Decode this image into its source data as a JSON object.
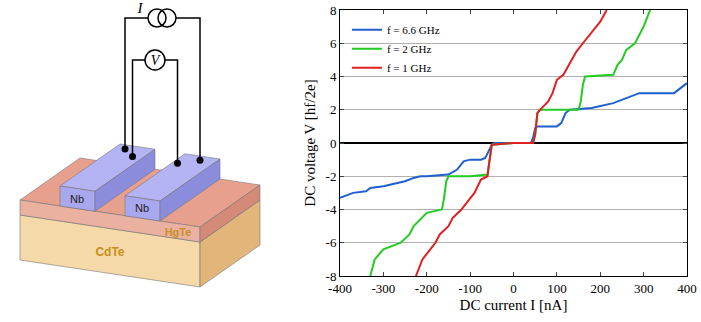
{
  "diagram": {
    "source_label": "I",
    "meter_label": "V",
    "electrodes": [
      "Nb",
      "Nb"
    ],
    "layers": [
      "HgTe",
      "CdTe"
    ]
  },
  "chart_data": {
    "type": "line",
    "xlabel": "DC current I [nA]",
    "ylabel": "DC voltage V [hf/2e]",
    "xlim": [
      -400,
      400
    ],
    "ylim": [
      -8,
      8
    ],
    "xticks": [
      -400,
      -300,
      -200,
      -100,
      0,
      100,
      200,
      300,
      400
    ],
    "yticks": [
      -8,
      -6,
      -4,
      -2,
      0,
      2,
      4,
      6,
      8
    ],
    "grid": true,
    "legend": "upper left",
    "series": [
      {
        "name": "f = 6.6 GHz",
        "color": "#1f5fd0",
        "x": [
          -400,
          -380,
          -370,
          -340,
          -330,
          -300,
          -250,
          -230,
          -215,
          -200,
          -150,
          -130,
          -115,
          -100,
          -75,
          -65,
          -55,
          -50,
          -45,
          0,
          40,
          45,
          50,
          55,
          100,
          110,
          120,
          130,
          180,
          230,
          250,
          270,
          290,
          370,
          380,
          400
        ],
        "values": [
          -3.3,
          -3.1,
          -3,
          -2.9,
          -2.7,
          -2.6,
          -2.3,
          -2.1,
          -2,
          -2,
          -1.9,
          -1.6,
          -1.1,
          -1,
          -1,
          -0.9,
          -0.4,
          -0.1,
          0,
          0,
          0,
          0.3,
          0.9,
          1,
          1,
          1.2,
          1.8,
          2,
          2.1,
          2.4,
          2.6,
          2.8,
          3,
          3,
          3.2,
          3.6
        ]
      },
      {
        "name": "f = 2 GHz",
        "color": "#22cc22",
        "x": [
          -330,
          -320,
          -300,
          -260,
          -240,
          -230,
          -200,
          -165,
          -160,
          -155,
          -150,
          -100,
          -60,
          -55,
          -50,
          0,
          45,
          50,
          55,
          60,
          150,
          155,
          160,
          165,
          230,
          240,
          250,
          260,
          280,
          300,
          315
        ],
        "values": [
          -8,
          -7,
          -6.4,
          -6,
          -5.5,
          -5,
          -4.2,
          -4,
          -3.3,
          -2.3,
          -2,
          -2,
          -1.9,
          -1,
          -0.1,
          0,
          0,
          0.5,
          1.8,
          2,
          2,
          2.5,
          3.5,
          4,
          4.1,
          4.7,
          5,
          5.6,
          6,
          7,
          8
        ]
      },
      {
        "name": "f = 1 GHz",
        "color": "#e02020",
        "x": [
          -225,
          -210,
          -195,
          -180,
          -170,
          -150,
          -140,
          -120,
          -105,
          -90,
          -75,
          -60,
          -55,
          -50,
          0,
          45,
          50,
          55,
          65,
          80,
          90,
          100,
          115,
          130,
          145,
          160,
          175,
          190,
          200,
          215
        ],
        "values": [
          -8,
          -7,
          -6.5,
          -6,
          -5.5,
          -5,
          -4.5,
          -4,
          -3.5,
          -3,
          -2.2,
          -2,
          -1,
          -0.1,
          0,
          0,
          0.5,
          1.8,
          2.1,
          2.5,
          3,
          3.8,
          4.1,
          4.8,
          5.5,
          6,
          6.5,
          7,
          7.3,
          8
        ]
      }
    ]
  }
}
